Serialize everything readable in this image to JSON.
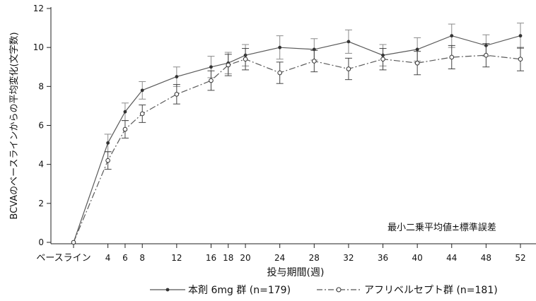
{
  "chart_data": {
    "type": "line",
    "title": "",
    "xlabel": "投与期間(週)",
    "ylabel": "BCVAのベースラインからの平均変化(文字数)",
    "annotation": "最小二乗平均値±標準誤差",
    "x_ticks": [
      {
        "x": 0,
        "label": "ベースライン"
      },
      {
        "x": 4,
        "label": "4"
      },
      {
        "x": 6,
        "label": "6"
      },
      {
        "x": 8,
        "label": "8"
      },
      {
        "x": 12,
        "label": "12"
      },
      {
        "x": 16,
        "label": "16"
      },
      {
        "x": 18,
        "label": "18"
      },
      {
        "x": 20,
        "label": "20"
      },
      {
        "x": 24,
        "label": "24"
      },
      {
        "x": 28,
        "label": "28"
      },
      {
        "x": 32,
        "label": "32"
      },
      {
        "x": 36,
        "label": "36"
      },
      {
        "x": 40,
        "label": "40"
      },
      {
        "x": 44,
        "label": "44"
      },
      {
        "x": 48,
        "label": "48"
      },
      {
        "x": 52,
        "label": "52"
      }
    ],
    "y_ticks": [
      0,
      2,
      4,
      6,
      8,
      10,
      12
    ],
    "ylim": [
      0,
      12
    ],
    "xlim": [
      0,
      52
    ],
    "grid": false,
    "legend_position": "bottom",
    "x": [
      0,
      4,
      6,
      8,
      12,
      16,
      18,
      20,
      24,
      28,
      32,
      36,
      40,
      44,
      48,
      52
    ],
    "series": [
      {
        "name": "本剤 6mg 群 (n=179)",
        "style": "solid",
        "marker": "filled-dot",
        "color": "#555555",
        "values": [
          0,
          5.1,
          6.7,
          7.8,
          8.5,
          9.0,
          9.2,
          9.6,
          10.0,
          9.9,
          10.3,
          9.6,
          9.9,
          10.6,
          10.1,
          10.6
        ],
        "error": [
          0,
          0.45,
          0.45,
          0.45,
          0.5,
          0.55,
          0.55,
          0.55,
          0.6,
          0.55,
          0.6,
          0.55,
          0.6,
          0.6,
          0.55,
          0.65
        ]
      },
      {
        "name": "アフリベルセプト群 (n=181)",
        "style": "dashed",
        "marker": "open-circle",
        "color": "#555555",
        "values": [
          0,
          4.2,
          5.8,
          6.6,
          7.6,
          8.3,
          9.1,
          9.4,
          8.7,
          9.3,
          8.9,
          9.4,
          9.2,
          9.5,
          9.6,
          9.4
        ],
        "error": [
          0,
          0.45,
          0.45,
          0.45,
          0.5,
          0.5,
          0.55,
          0.55,
          0.55,
          0.55,
          0.55,
          0.55,
          0.6,
          0.6,
          0.6,
          0.6
        ]
      }
    ]
  }
}
